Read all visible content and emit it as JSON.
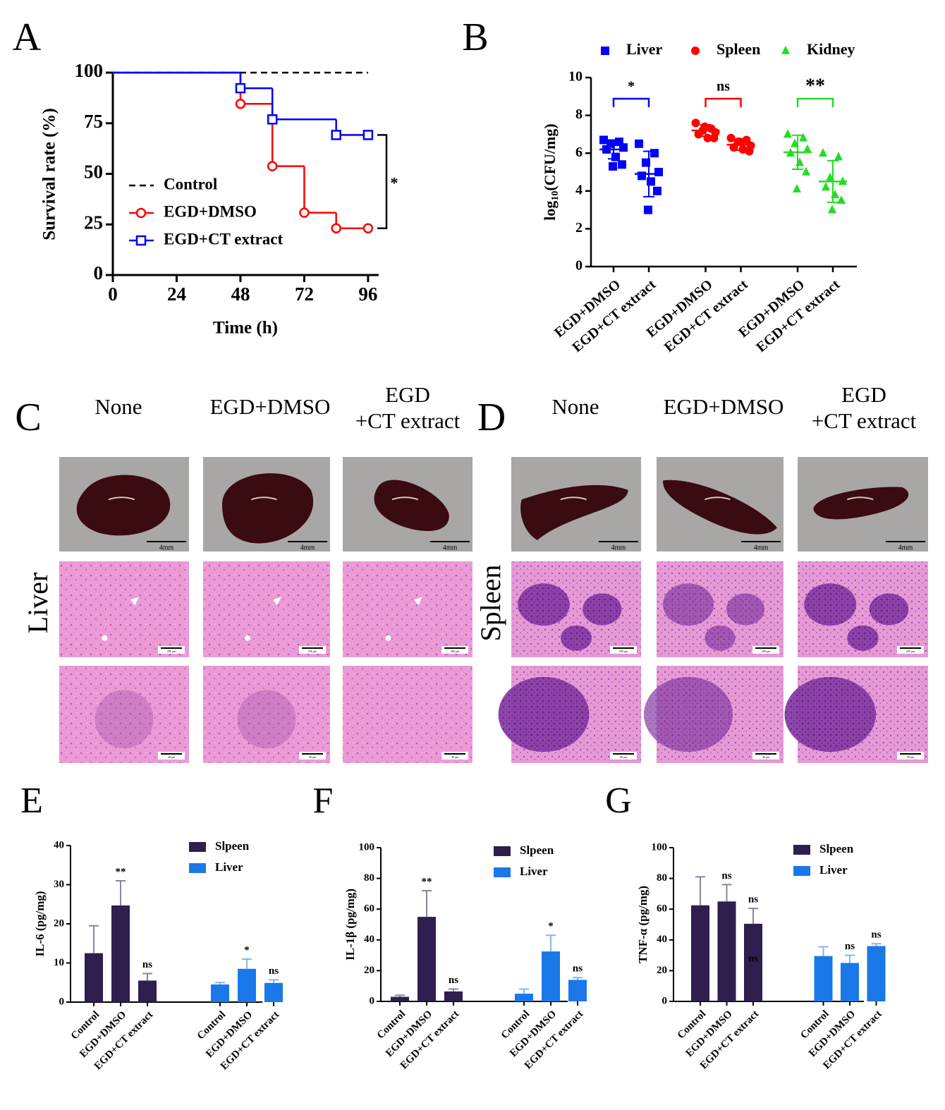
{
  "chart_data": [
    {
      "type": "line",
      "panel": "A",
      "xlabel": "Time (h)",
      "ylabel": "Survival rate (%)",
      "xlim": [
        0,
        100
      ],
      "xticks": [
        0,
        24,
        48,
        72,
        96
      ],
      "ylim": [
        0,
        100
      ],
      "yticks": [
        0,
        25,
        50,
        75,
        100
      ],
      "step": true,
      "legend": "bottom-left",
      "significance": "*",
      "series": [
        {
          "name": "Control",
          "color": "#000000",
          "dash": true,
          "x": [
            0,
            96
          ],
          "values": [
            100,
            100
          ]
        },
        {
          "name": "EGD+DMSO",
          "color": "#ff0000",
          "marker": "circle",
          "x": [
            0,
            48,
            60,
            72,
            84,
            96
          ],
          "values": [
            100,
            84.6,
            53.8,
            30.8,
            23.1,
            23.1
          ]
        },
        {
          "name": "EGD+CT extract",
          "color": "#0000ff",
          "marker": "square",
          "x": [
            0,
            48,
            60,
            84,
            96
          ],
          "values": [
            100,
            92.3,
            76.9,
            69.2,
            69.2
          ]
        }
      ]
    },
    {
      "type": "scatter",
      "panel": "B",
      "ylabel": {
        "base": "log",
        "sub": "10",
        "rest": "(CFU/mg)"
      },
      "ylim": [
        0,
        10
      ],
      "yticks": [
        0,
        2,
        4,
        6,
        8,
        10
      ],
      "legend": "top",
      "categories": [
        "EGD+DMSO",
        "EGD+CT extract",
        "EGD+DMSO",
        "EGD+CT extract",
        "EGD+DMSO",
        "EGD+CT extract"
      ],
      "series": [
        {
          "name": "Liver",
          "color": "#0000ff",
          "marker": "square",
          "significance": "*",
          "points": [
            [
              6.7,
              6.6,
              6.5,
              6.3,
              6.2,
              5.8,
              5.4,
              5.3
            ],
            [
              6.5,
              6.0,
              5.5,
              5.0,
              4.8,
              4.5,
              4.0,
              3.0
            ]
          ],
          "means": [
            6.2,
            4.9
          ],
          "sd": [
            0.5,
            1.2
          ]
        },
        {
          "name": "Spleen",
          "color": "#ff0000",
          "marker": "circle",
          "significance": "ns",
          "points": [
            [
              7.6,
              7.3,
              7.2,
              7.1,
              7.0,
              6.8,
              6.8,
              7.4
            ],
            [
              6.8,
              6.7,
              6.6,
              6.4,
              6.3,
              6.2,
              6.1,
              6.6
            ]
          ],
          "means": [
            7.2,
            6.45
          ],
          "sd": [
            0.3,
            0.3
          ]
        },
        {
          "name": "Kidney",
          "color": "#22dd22",
          "marker": "triangle",
          "significance": "**",
          "points": [
            [
              7.0,
              6.8,
              6.5,
              6.2,
              6.0,
              5.5,
              5.0,
              4.1
            ],
            [
              6.0,
              5.8,
              4.7,
              4.5,
              4.2,
              3.8,
              3.5,
              3.0
            ]
          ],
          "means": [
            6.05,
            4.5
          ],
          "sd": [
            0.9,
            1.1
          ]
        }
      ]
    },
    {
      "type": "bar",
      "panel": "E",
      "ylabel": "IL-6 (pg/mg)",
      "ylim": [
        0,
        40
      ],
      "yticks": [
        0,
        10,
        20,
        30,
        40
      ],
      "legend": "top-right",
      "categories": [
        "Control",
        "EGD+DMSO",
        "EGD+CT extract",
        "Control",
        "EGD+DMSO",
        "EGD+CT extract"
      ],
      "series": [
        {
          "name": "Slpeen",
          "color": "#2e1f4f",
          "values": [
            12.5,
            24.7,
            5.5,
            null,
            null,
            null
          ],
          "errors": [
            7,
            6.3,
            1.8,
            null,
            null,
            null
          ]
        },
        {
          "name": "Liver",
          "color": "#1b78e8",
          "values": [
            null,
            null,
            null,
            4.5,
            8.5,
            4.9
          ],
          "errors": [
            null,
            null,
            null,
            0.5,
            2.5,
            0.8
          ]
        }
      ],
      "significance": [
        null,
        "**",
        "ns",
        null,
        "*",
        "ns"
      ]
    },
    {
      "type": "bar",
      "panel": "F",
      "ylabel": "IL-1β (pg/mg)",
      "ylim": [
        0,
        100
      ],
      "yticks": [
        0,
        20,
        40,
        60,
        80,
        100
      ],
      "legend": "top-right",
      "categories": [
        "Control",
        "EGD+DMSO",
        "EGD+CT extract",
        "Control",
        "EGD+DMSO",
        "EGD+CT extract"
      ],
      "series": [
        {
          "name": "Slpeen",
          "color": "#2e1f4f",
          "values": [
            3,
            55,
            6.5,
            null,
            null,
            null
          ],
          "errors": [
            1,
            17,
            1.5,
            null,
            null,
            null
          ]
        },
        {
          "name": "Liver",
          "color": "#1b78e8",
          "values": [
            null,
            null,
            null,
            5,
            32.5,
            14
          ],
          "errors": [
            null,
            null,
            null,
            3,
            10.5,
            1.5
          ]
        }
      ],
      "significance": [
        null,
        "**",
        "ns",
        null,
        "*",
        "ns"
      ]
    },
    {
      "type": "bar",
      "panel": "G",
      "ylabel": "TNF-α (pg/mg)",
      "ylim": [
        0,
        100
      ],
      "yticks": [
        0,
        20,
        40,
        60,
        80,
        100
      ],
      "legend": "top-right",
      "categories": [
        "Control",
        "EGD+DMSO",
        "EGD+CT extract",
        "Control",
        "EGD+DMSO",
        "EGD+CT extract"
      ],
      "series": [
        {
          "name": "Slpeen",
          "color": "#2e1f4f",
          "values": [
            62.5,
            65,
            50.5,
            null,
            null,
            null
          ],
          "errors": [
            18.5,
            11,
            10,
            null,
            null,
            null
          ]
        },
        {
          "name": "Liver",
          "color": "#1b78e8",
          "values": [
            null,
            null,
            null,
            29.5,
            25,
            36
          ],
          "errors": [
            null,
            null,
            null,
            6,
            5,
            1.5
          ]
        }
      ],
      "significance": [
        null,
        "ns",
        "ns",
        null,
        "ns",
        "ns"
      ],
      "annotations": [
        {
          "text": "ns",
          "category": 2,
          "y": 27.5
        }
      ]
    }
  ],
  "panels": [
    {
      "label": "C",
      "columns": [
        [
          "None"
        ],
        [
          "EGD+DMSO"
        ],
        [
          "EGD",
          "+CT extract"
        ]
      ],
      "row_label": "Liver",
      "scale_labels": [
        "4mm",
        "200 μm",
        "40 μm"
      ]
    },
    {
      "label": "D",
      "columns": [
        [
          "None"
        ],
        [
          "EGD+DMSO"
        ],
        [
          "EGD",
          "+CT extract"
        ]
      ],
      "row_label": "Spleen",
      "scale_labels": [
        "4mm",
        "200 μm",
        "40 μm"
      ]
    }
  ]
}
